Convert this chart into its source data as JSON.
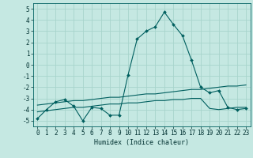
{
  "title": "",
  "xlabel": "Humidex (Indice chaleur)",
  "xlim": [
    -0.5,
    23.5
  ],
  "ylim": [
    -5.5,
    5.5
  ],
  "xticks": [
    0,
    1,
    2,
    3,
    4,
    5,
    6,
    7,
    8,
    9,
    10,
    11,
    12,
    13,
    14,
    15,
    16,
    17,
    18,
    19,
    20,
    21,
    22,
    23
  ],
  "yticks": [
    -5,
    -4,
    -3,
    -2,
    -1,
    0,
    1,
    2,
    3,
    4,
    5
  ],
  "bg_color": "#c5e8e2",
  "grid_color": "#a8d4cc",
  "line_color": "#005f5f",
  "line1_x": [
    0,
    1,
    2,
    3,
    4,
    5,
    6,
    7,
    8,
    9,
    10,
    11,
    12,
    13,
    14,
    15,
    16,
    17,
    18,
    19,
    20,
    21,
    22,
    23
  ],
  "line1_y": [
    -4.8,
    -4.0,
    -3.3,
    -3.1,
    -3.7,
    -5.0,
    -3.8,
    -3.9,
    -4.5,
    -4.5,
    -0.9,
    2.3,
    3.0,
    3.4,
    4.7,
    3.6,
    2.6,
    0.4,
    -2.0,
    -2.5,
    -2.3,
    -3.8,
    -4.0,
    -3.9
  ],
  "line2_x": [
    0,
    1,
    2,
    3,
    4,
    5,
    6,
    7,
    8,
    9,
    10,
    11,
    12,
    13,
    14,
    15,
    16,
    17,
    18,
    19,
    20,
    21,
    22,
    23
  ],
  "line2_y": [
    -3.6,
    -3.5,
    -3.4,
    -3.3,
    -3.2,
    -3.2,
    -3.1,
    -3.0,
    -2.9,
    -2.9,
    -2.8,
    -2.7,
    -2.6,
    -2.6,
    -2.5,
    -2.4,
    -2.3,
    -2.2,
    -2.2,
    -2.1,
    -2.0,
    -1.9,
    -1.9,
    -1.8
  ],
  "line3_x": [
    0,
    1,
    2,
    3,
    4,
    5,
    6,
    7,
    8,
    9,
    10,
    11,
    12,
    13,
    14,
    15,
    16,
    17,
    18,
    19,
    20,
    21,
    22,
    23
  ],
  "line3_y": [
    -4.2,
    -4.1,
    -4.0,
    -3.9,
    -3.8,
    -3.8,
    -3.7,
    -3.6,
    -3.5,
    -3.5,
    -3.4,
    -3.4,
    -3.3,
    -3.2,
    -3.2,
    -3.1,
    -3.1,
    -3.0,
    -3.0,
    -3.9,
    -4.0,
    -3.9,
    -3.8,
    -3.8
  ],
  "tick_fontsize": 5.5,
  "xlabel_fontsize": 6.0
}
